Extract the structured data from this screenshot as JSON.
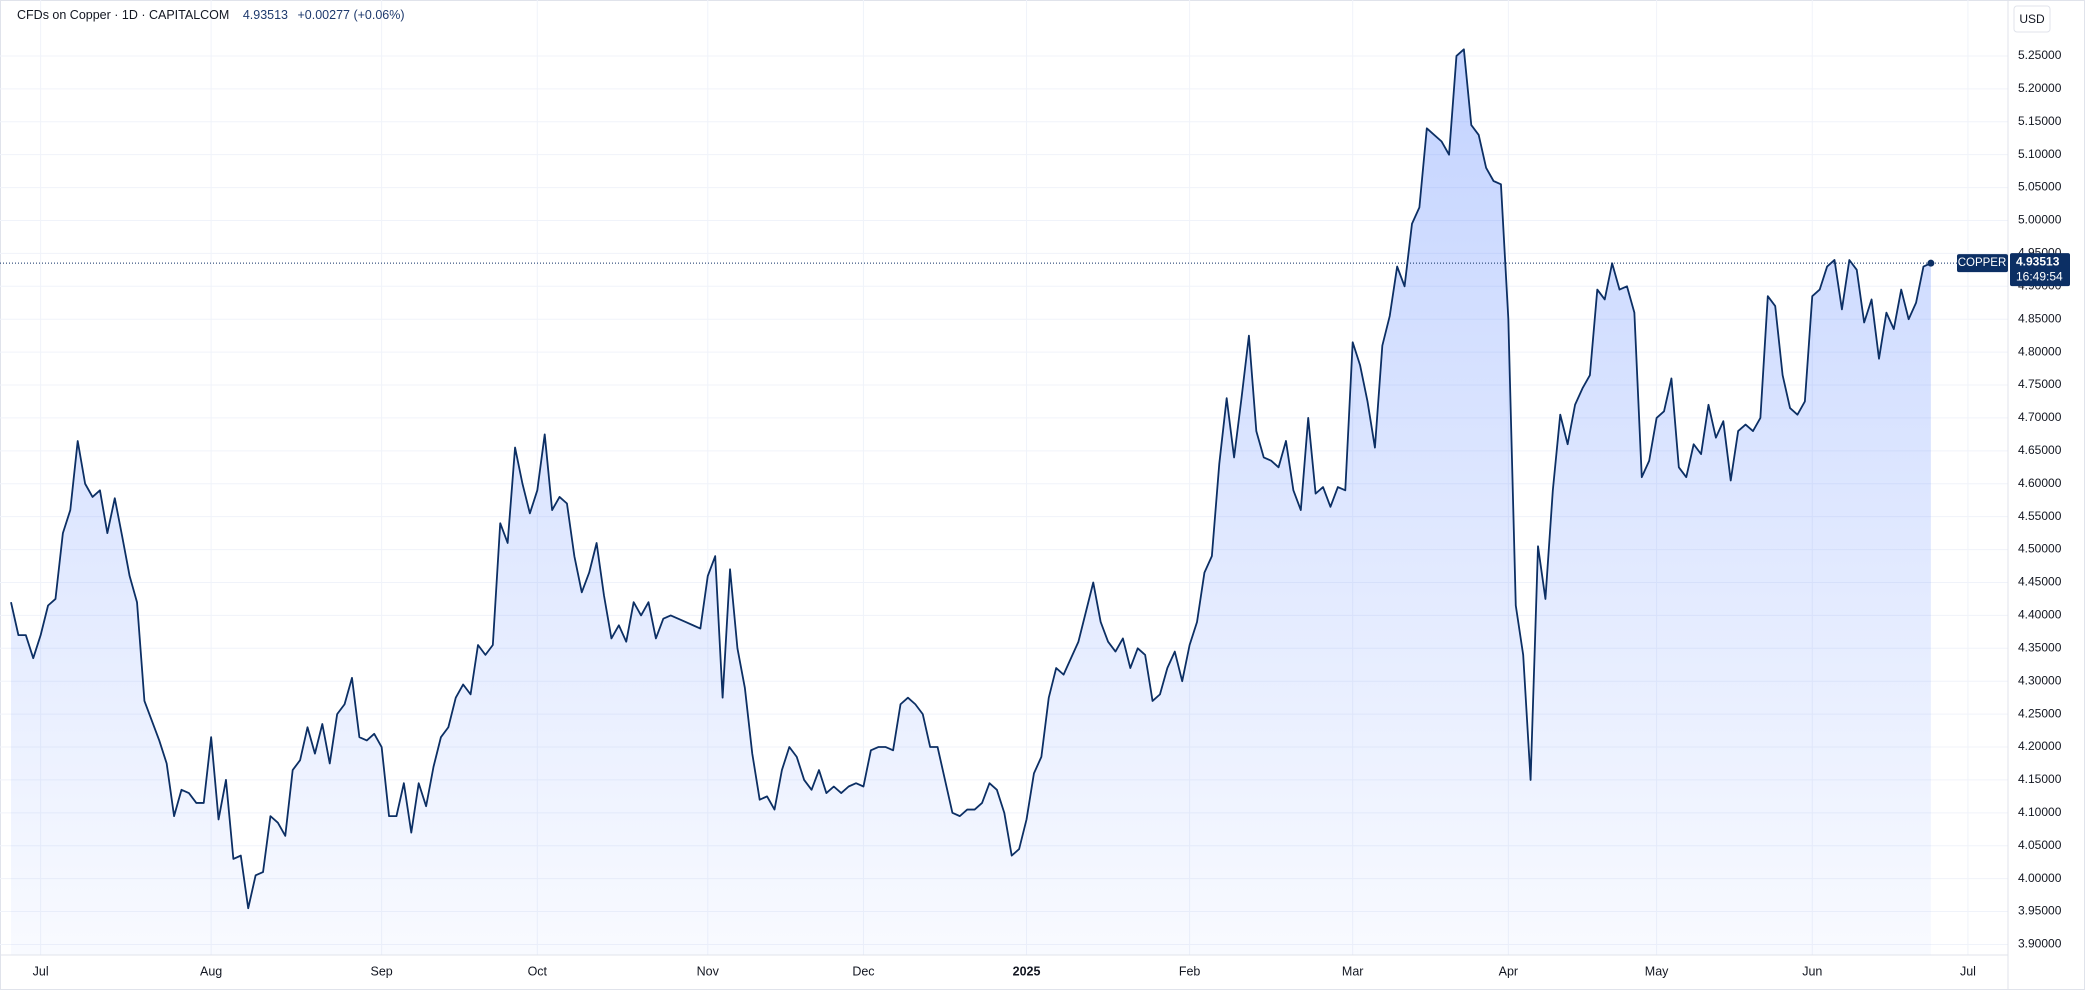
{
  "chart_data": {
    "type": "area",
    "title": "CFDs on Copper · 1D · CAPITALCOM",
    "change": "+0.00277 (+0.06%)",
    "currency": "USD",
    "symbol_label": "COPPER",
    "countdown": "16:49:54",
    "color": "#0c2f64",
    "fill_color": "#2962ff",
    "grid": true,
    "categories": [
      null,
      null,
      null,
      null,
      "Jul",
      null,
      null,
      null,
      null,
      null,
      null,
      null,
      null,
      null,
      null,
      null,
      null,
      null,
      null,
      null,
      null,
      null,
      null,
      null,
      null,
      null,
      null,
      "Aug",
      null,
      null,
      null,
      null,
      null,
      null,
      null,
      null,
      null,
      null,
      null,
      null,
      null,
      null,
      null,
      null,
      null,
      null,
      null,
      null,
      null,
      null,
      "Sep",
      null,
      null,
      null,
      null,
      null,
      null,
      null,
      null,
      null,
      null,
      null,
      null,
      null,
      null,
      null,
      null,
      null,
      null,
      null,
      null,
      "Oct",
      null,
      null,
      null,
      null,
      null,
      null,
      null,
      null,
      null,
      null,
      null,
      null,
      null,
      null,
      null,
      null,
      null,
      null,
      null,
      null,
      null,
      null,
      "Nov",
      null,
      null,
      null,
      null,
      null,
      null,
      null,
      null,
      null,
      null,
      null,
      null,
      null,
      null,
      null,
      null,
      null,
      null,
      null,
      null,
      "Dec",
      null,
      null,
      null,
      null,
      null,
      null,
      null,
      null,
      null,
      null,
      null,
      null,
      null,
      null,
      null,
      null,
      null,
      null,
      null,
      null,
      null,
      "2025",
      null,
      null,
      null,
      null,
      null,
      null,
      null,
      null,
      null,
      null,
      null,
      null,
      null,
      null,
      null,
      null,
      null,
      null,
      null,
      null,
      null,
      "Feb",
      null,
      null,
      null,
      null,
      null,
      null,
      null,
      null,
      null,
      null,
      null,
      null,
      null,
      null,
      null,
      null,
      null,
      null,
      null,
      null,
      null,
      "Mar",
      null,
      null,
      null,
      null,
      null,
      null,
      null,
      null,
      null,
      null,
      null,
      null,
      null,
      null,
      null,
      null,
      null,
      null,
      null,
      null,
      "Apr",
      null,
      null,
      null,
      null,
      null,
      null,
      null,
      null,
      null,
      null,
      null,
      null,
      null,
      null,
      null,
      null,
      null,
      null,
      null,
      "May",
      null,
      null,
      null,
      null,
      null,
      null,
      null,
      null,
      null,
      null,
      null,
      null,
      null,
      null,
      null,
      null,
      null,
      null,
      null,
      null,
      "Jun",
      null,
      null,
      null,
      null,
      null,
      null,
      null,
      null,
      null,
      null,
      null,
      null,
      null,
      null,
      null,
      null,
      null,
      null,
      null,
      null,
      "Jul",
      null,
      null,
      null,
      null,
      null
    ],
    "values": [
      4.42,
      4.37,
      4.37,
      4.335,
      4.37,
      4.415,
      4.425,
      4.525,
      4.56,
      4.665,
      4.6,
      4.58,
      4.59,
      4.525,
      4.578,
      4.52,
      4.46,
      4.42,
      4.27,
      4.24,
      4.21,
      4.175,
      4.095,
      4.135,
      4.13,
      4.115,
      4.115,
      4.215,
      4.09,
      4.15,
      4.03,
      4.035,
      3.955,
      4.005,
      4.01,
      4.095,
      4.085,
      4.065,
      4.165,
      4.18,
      4.23,
      4.19,
      4.235,
      4.175,
      4.25,
      4.265,
      4.305,
      4.215,
      4.21,
      4.22,
      4.2,
      4.095,
      4.095,
      4.145,
      4.07,
      4.145,
      4.11,
      4.17,
      4.215,
      4.23,
      4.275,
      4.295,
      4.28,
      4.355,
      4.34,
      4.355,
      4.54,
      4.51,
      4.655,
      4.6,
      4.555,
      4.59,
      4.675,
      4.56,
      4.58,
      4.57,
      4.49,
      4.435,
      4.465,
      4.51,
      4.43,
      4.365,
      4.385,
      4.36,
      4.42,
      4.4,
      4.42,
      4.365,
      4.395,
      4.4,
      4.395,
      4.39,
      4.385,
      4.38,
      4.46,
      4.49,
      4.275,
      4.47,
      4.35,
      4.29,
      4.19,
      4.12,
      4.125,
      4.105,
      4.165,
      4.2,
      4.185,
      4.15,
      4.135,
      4.165,
      4.13,
      4.14,
      4.13,
      4.14,
      4.145,
      4.14,
      4.195,
      4.2,
      4.2,
      4.195,
      4.265,
      4.275,
      4.265,
      4.25,
      4.2,
      4.2,
      4.15,
      4.1,
      4.095,
      4.105,
      4.105,
      4.115,
      4.145,
      4.135,
      4.1,
      4.035,
      4.045,
      4.09,
      4.16,
      4.185,
      4.275,
      4.32,
      4.31,
      4.335,
      4.36,
      4.405,
      4.45,
      4.39,
      4.36,
      4.345,
      4.365,
      4.32,
      4.35,
      4.34,
      4.27,
      4.28,
      4.32,
      4.345,
      4.3,
      4.355,
      4.39,
      4.465,
      4.49,
      4.63,
      4.73,
      4.64,
      4.73,
      4.825,
      4.68,
      4.64,
      4.635,
      4.625,
      4.665,
      4.59,
      4.56,
      4.7,
      4.585,
      4.595,
      4.565,
      4.595,
      4.59,
      4.815,
      4.78,
      4.725,
      4.655,
      4.81,
      4.855,
      4.93,
      4.9,
      4.995,
      5.02,
      5.14,
      5.13,
      5.12,
      5.1,
      5.25,
      5.26,
      5.145,
      5.13,
      5.08,
      5.06,
      5.055,
      4.85,
      4.415,
      4.34,
      4.15,
      4.505,
      4.425,
      4.59,
      4.705,
      4.66,
      4.72,
      4.745,
      4.765,
      4.895,
      4.88,
      4.935,
      4.895,
      4.9,
      4.86,
      4.61,
      4.635,
      4.7,
      4.71,
      4.76,
      4.625,
      4.61,
      4.66,
      4.645,
      4.72,
      4.67,
      4.695,
      4.605,
      4.68,
      4.69,
      4.68,
      4.7,
      4.885,
      4.87,
      4.765,
      4.715,
      4.705,
      4.725,
      4.885,
      4.895,
      4.93,
      4.94,
      4.865,
      4.94,
      4.925,
      4.845,
      4.88,
      4.79,
      4.86,
      4.835,
      4.895,
      4.85,
      4.875,
      4.93,
      4.93513,
      null,
      null,
      null,
      null,
      null,
      null,
      null,
      null,
      null,
      null
    ],
    "ylim": [
      3.884,
      5.335
    ],
    "yticks": [
      {
        "value": 3.9,
        "label": "3.90000"
      },
      {
        "value": 3.95,
        "label": "3.95000"
      },
      {
        "value": 4.0,
        "label": "4.00000"
      },
      {
        "value": 4.05,
        "label": "4.05000"
      },
      {
        "value": 4.1,
        "label": "4.10000"
      },
      {
        "value": 4.15,
        "label": "4.15000"
      },
      {
        "value": 4.2,
        "label": "4.20000"
      },
      {
        "value": 4.25,
        "label": "4.25000"
      },
      {
        "value": 4.3,
        "label": "4.30000"
      },
      {
        "value": 4.35,
        "label": "4.35000"
      },
      {
        "value": 4.4,
        "label": "4.40000"
      },
      {
        "value": 4.45,
        "label": "4.45000"
      },
      {
        "value": 4.5,
        "label": "4.50000"
      },
      {
        "value": 4.55,
        "label": "4.55000"
      },
      {
        "value": 4.6,
        "label": "4.60000"
      },
      {
        "value": 4.65,
        "label": "4.65000"
      },
      {
        "value": 4.7,
        "label": "4.70000"
      },
      {
        "value": 4.75,
        "label": "4.75000"
      },
      {
        "value": 4.8,
        "label": "4.80000"
      },
      {
        "value": 4.85,
        "label": "4.85000"
      },
      {
        "value": 4.9,
        "label": "4.90000"
      },
      {
        "value": 4.95,
        "label": "4.95000"
      },
      {
        "value": 5.0,
        "label": "5.00000"
      },
      {
        "value": 5.05,
        "label": "5.05000"
      },
      {
        "value": 5.1,
        "label": "5.10000"
      },
      {
        "value": 5.15,
        "label": "5.15000"
      },
      {
        "value": 5.2,
        "label": "5.20000"
      },
      {
        "value": 5.25,
        "label": "5.25000"
      }
    ]
  }
}
